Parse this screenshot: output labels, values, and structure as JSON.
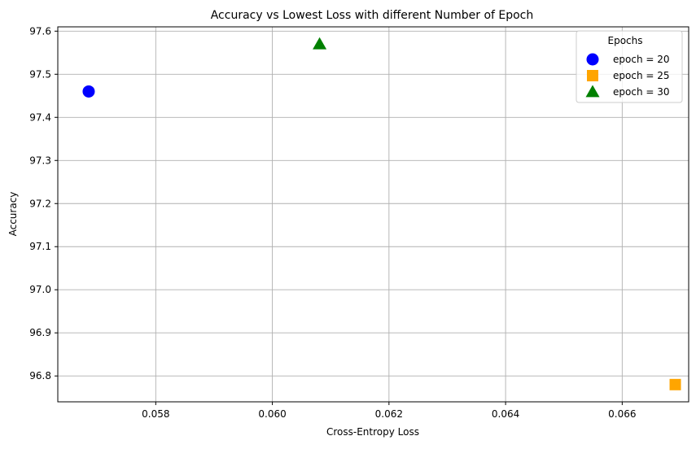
{
  "chart_data": {
    "type": "scatter",
    "title": "Accuracy vs Lowest Loss with different Number of Epoch",
    "xlabel": "Cross-Entropy Loss",
    "ylabel": "Accuracy",
    "xlim": [
      0.05632,
      0.06714
    ],
    "ylim": [
      96.74,
      97.61
    ],
    "xticks": [
      0.058,
      0.06,
      0.062,
      0.064,
      0.066
    ],
    "xtick_labels": [
      "0.058",
      "0.060",
      "0.062",
      "0.064",
      "0.066"
    ],
    "yticks": [
      96.8,
      96.9,
      97.0,
      97.1,
      97.2,
      97.3,
      97.4,
      97.5,
      97.6
    ],
    "ytick_labels": [
      "96.8",
      "96.9",
      "97.0",
      "97.1",
      "97.2",
      "97.3",
      "97.4",
      "97.5",
      "97.6"
    ],
    "grid": true,
    "legend": {
      "title": "Epochs",
      "placement": "top-right"
    },
    "series": [
      {
        "name": "epoch = 20",
        "marker": "circle",
        "color": "#0000ff",
        "x": [
          0.05685
        ],
        "y": [
          97.46
        ]
      },
      {
        "name": "epoch = 25",
        "marker": "square",
        "color": "#ffa500",
        "x": [
          0.06691
        ],
        "y": [
          96.78
        ]
      },
      {
        "name": "epoch = 30",
        "marker": "triangle",
        "color": "#008000",
        "x": [
          0.06081
        ],
        "y": [
          97.57
        ]
      }
    ]
  }
}
